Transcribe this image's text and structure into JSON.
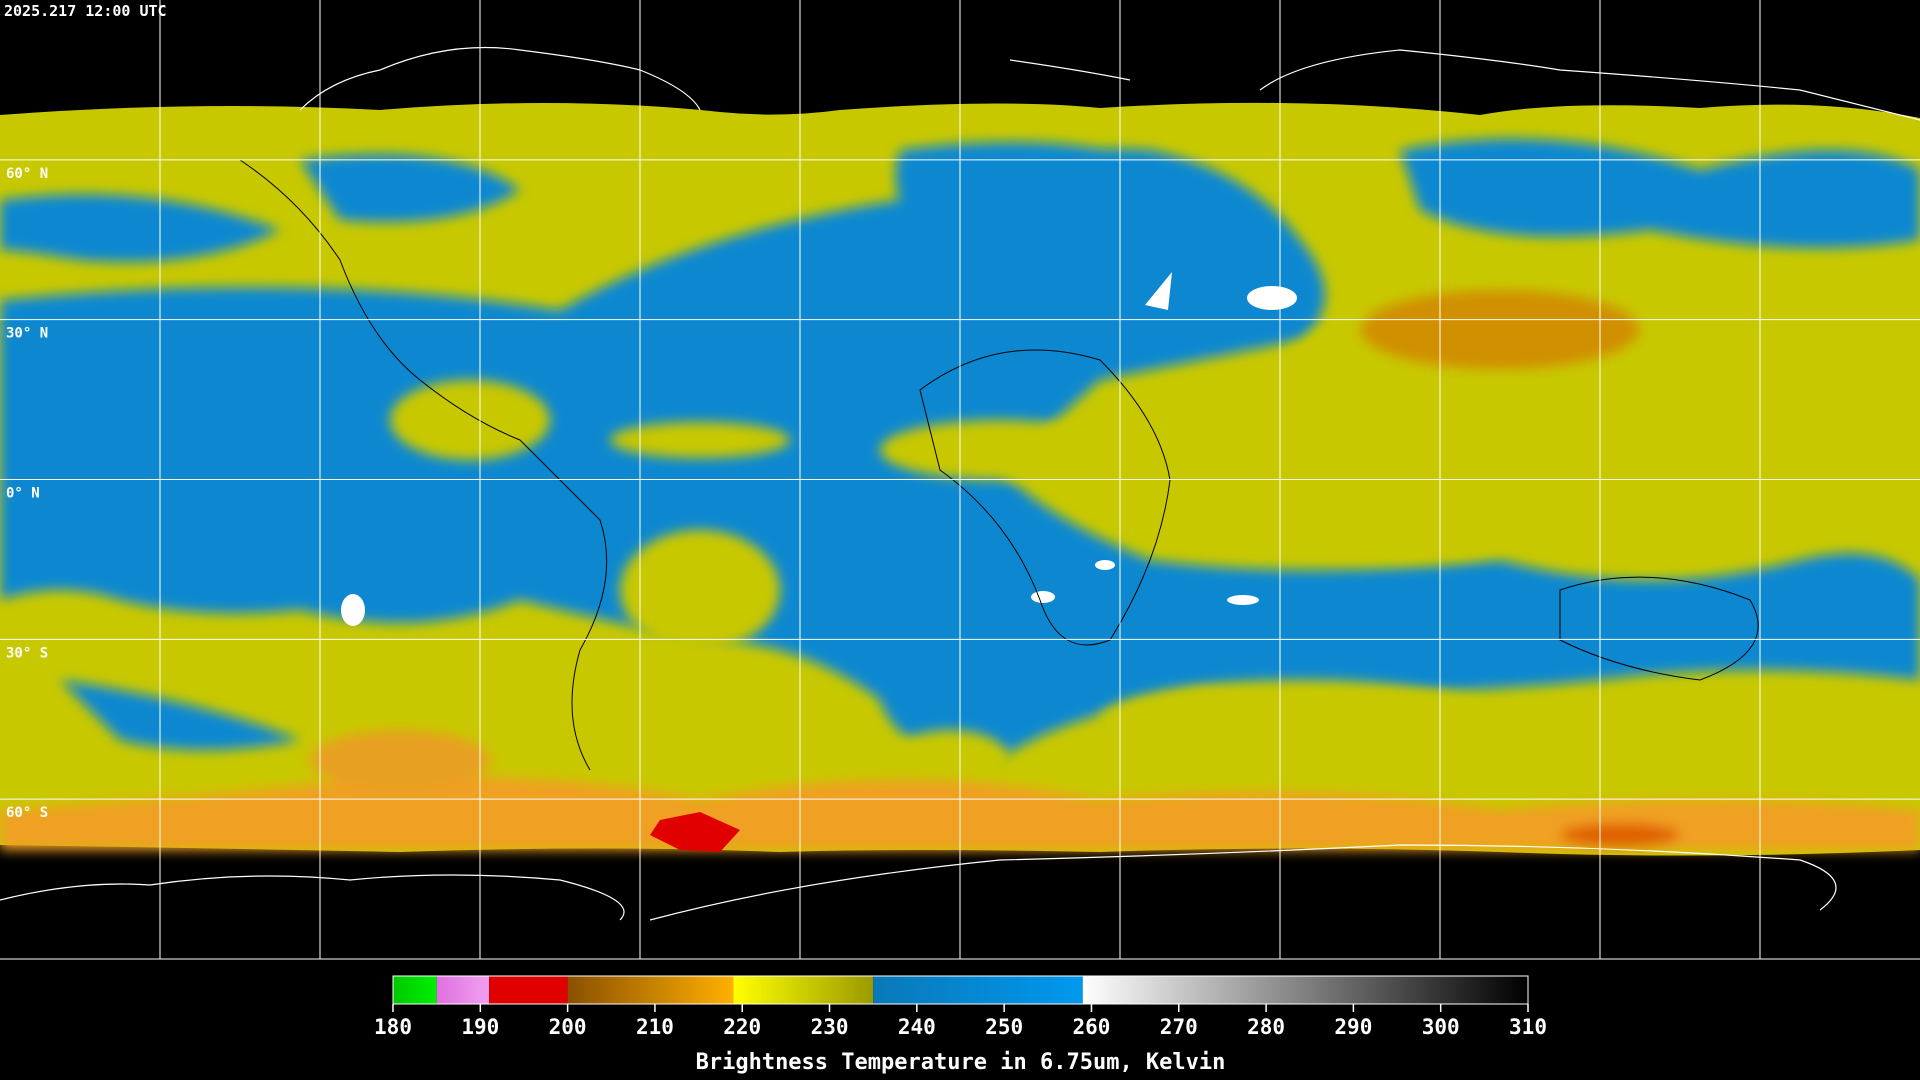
{
  "timestamp": "2025.217 12:00 UTC",
  "lat_labels": [
    "60° N",
    "30° N",
    "0° N",
    "30° S",
    "60° S"
  ],
  "colorbar": {
    "title": "Brightness Temperature in 6.75um, Kelvin",
    "range": [
      180,
      310
    ],
    "ticks": [
      180,
      190,
      200,
      210,
      220,
      230,
      240,
      250,
      260,
      270,
      280,
      290,
      300,
      310
    ],
    "segments": [
      {
        "from": 180,
        "to": 185,
        "colors": [
          "#00c800",
          "#00f000"
        ]
      },
      {
        "from": 185,
        "to": 191,
        "colors": [
          "#e070e0",
          "#f0a0f0"
        ]
      },
      {
        "from": 191,
        "to": 200,
        "colors": [
          "#e00000",
          "#e00000"
        ]
      },
      {
        "from": 200,
        "to": 219,
        "colors": [
          "#8a5000",
          "#ffb000"
        ]
      },
      {
        "from": 219,
        "to": 235,
        "colors": [
          "#ffff00",
          "#9a9a00"
        ]
      },
      {
        "from": 235,
        "to": 259,
        "colors": [
          "#0a78b8",
          "#0098ee"
        ]
      },
      {
        "from": 259,
        "to": 310,
        "colors": [
          "#ffffff",
          "#000000"
        ]
      }
    ]
  }
}
